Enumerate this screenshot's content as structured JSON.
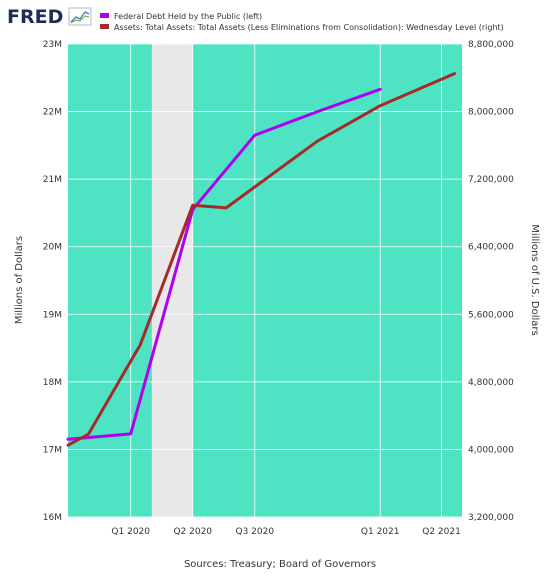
{
  "logo": {
    "text": "FRED",
    "icon": "line-chart-icon"
  },
  "colors": {
    "plot_bg": "#4de3c3",
    "recession": "#e8e8e8",
    "series1": "#b000f0",
    "series2": "#a52a2a",
    "grid": "#ffffff"
  },
  "chart_data": {
    "type": "line",
    "legend_position": "top-left",
    "grid": true,
    "x_ticks": [
      {
        "label": "Q1 2020",
        "date": "2020-01-01"
      },
      {
        "label": "Q2 2020",
        "date": "2020-04-01"
      },
      {
        "label": "Q3 2020",
        "date": "2020-07-01"
      },
      {
        "label": "Q1 2021",
        "date": "2021-01-01"
      },
      {
        "label": "Q2 2021",
        "date": "2021-04-01"
      }
    ],
    "xlim": [
      "2019-10-01",
      "2021-05-01"
    ],
    "recession": {
      "start": "2020-02-01",
      "end": "2020-04-01"
    },
    "y_left": {
      "label": "Millions of Dollars",
      "ticks": [
        "16M",
        "17M",
        "18M",
        "19M",
        "20M",
        "21M",
        "22M",
        "23M"
      ],
      "lim": [
        16000000,
        23000000
      ]
    },
    "y_right": {
      "label": "Millions of U.S. Dollars",
      "ticks": [
        "3,200,000",
        "4,000,000",
        "4,800,000",
        "5,600,000",
        "6,400,000",
        "7,200,000",
        "8,000,000",
        "8,800,000"
      ],
      "lim": [
        3200000,
        8800000
      ]
    },
    "series": [
      {
        "name": "Federal Debt Held by the Public (left)",
        "axis": "left",
        "points": [
          {
            "x": "2019-10-01",
            "y": 17150000
          },
          {
            "x": "2020-01-01",
            "y": 17230000
          },
          {
            "x": "2020-04-01",
            "y": 20550000
          },
          {
            "x": "2020-07-01",
            "y": 21650000
          },
          {
            "x": "2020-10-01",
            "y": 22000000
          },
          {
            "x": "2021-01-01",
            "y": 22330000
          }
        ]
      },
      {
        "name": "Assets: Total Assets: Total Assets (Less Eliminations from Consolidation): Wednesday Level (right)",
        "axis": "right",
        "points": [
          {
            "x": "2019-10-01",
            "y": 4050000
          },
          {
            "x": "2019-10-31",
            "y": 4180000
          },
          {
            "x": "2020-01-15",
            "y": 5240000
          },
          {
            "x": "2020-04-01",
            "y": 6890000
          },
          {
            "x": "2020-05-20",
            "y": 6860000
          },
          {
            "x": "2020-10-01",
            "y": 7650000
          },
          {
            "x": "2021-01-01",
            "y": 8070000
          },
          {
            "x": "2021-04-20",
            "y": 8450000
          }
        ]
      }
    ]
  },
  "source": "Sources: Treasury; Board of Governors"
}
